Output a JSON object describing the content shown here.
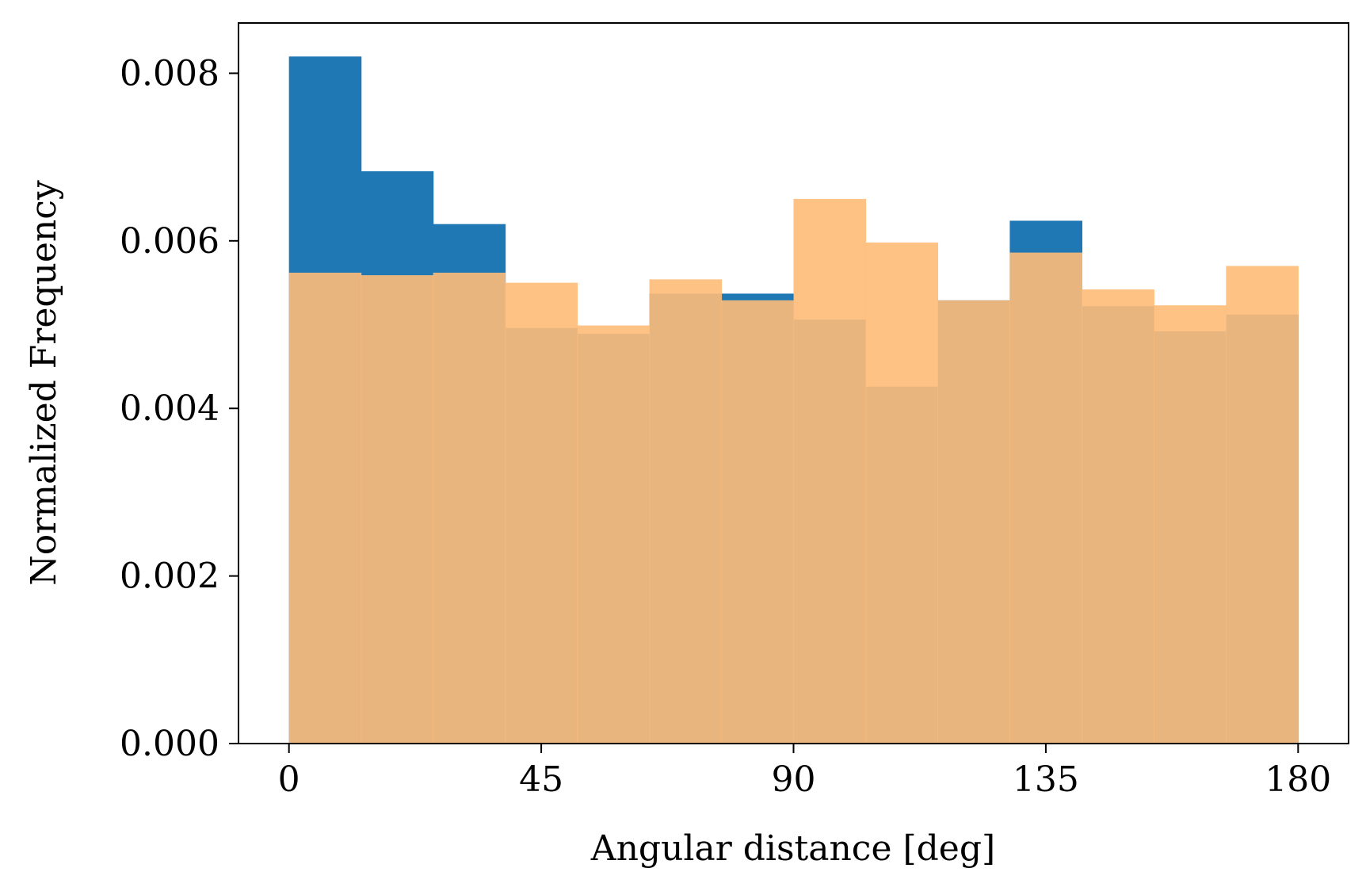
{
  "chart_data": {
    "type": "bar",
    "title": "",
    "xlabel": "Angular distance [deg]",
    "ylabel": "Normalized Frequency",
    "xlim": [
      -9,
      189
    ],
    "ylim": [
      0,
      0.0086
    ],
    "grid": false,
    "legend": "none",
    "bin_edges": [
      0,
      12.857,
      25.714,
      38.571,
      51.429,
      64.286,
      77.143,
      90,
      102.857,
      115.714,
      128.571,
      141.429,
      154.286,
      167.143,
      180
    ],
    "series": [
      {
        "color": "#1f77b4",
        "values": [
          0.0082,
          0.00683,
          0.0062,
          0.00496,
          0.00489,
          0.00537,
          0.00537,
          0.00506,
          0.00426,
          0.00529,
          0.00624,
          0.00522,
          0.00492,
          0.00512
        ]
      },
      {
        "color": "#ffbb78",
        "opacity": 0.9,
        "values": [
          0.00562,
          0.00559,
          0.00562,
          0.0055,
          0.00499,
          0.00554,
          0.00529,
          0.0065,
          0.00598,
          0.00529,
          0.00586,
          0.00542,
          0.00523,
          0.0057
        ]
      }
    ],
    "xticks": [
      {
        "value": 0,
        "label": "0"
      },
      {
        "value": 45,
        "label": "45"
      },
      {
        "value": 90,
        "label": "90"
      },
      {
        "value": 135,
        "label": "135"
      },
      {
        "value": 180,
        "label": "180"
      }
    ],
    "yticks": [
      {
        "value": 0,
        "label": "0.000"
      },
      {
        "value": 0.002,
        "label": "0.002"
      },
      {
        "value": 0.004,
        "label": "0.004"
      },
      {
        "value": 0.006,
        "label": "0.006"
      },
      {
        "value": 0.008,
        "label": "0.008"
      }
    ]
  }
}
